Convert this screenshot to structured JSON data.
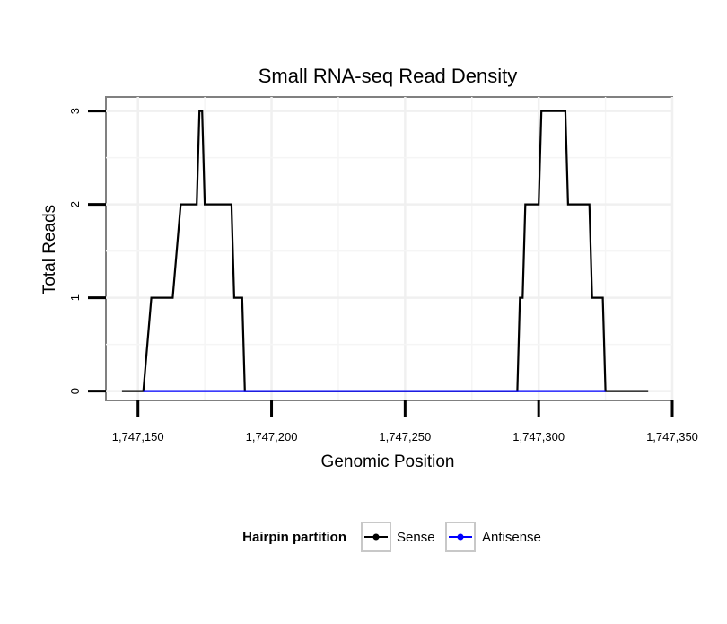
{
  "chart_data": {
    "type": "line",
    "title": "Small RNA-seq Read Density",
    "xlabel": "Genomic Position",
    "ylabel": "Total Reads",
    "xlim": [
      1747138,
      1747350
    ],
    "ylim": [
      -0.1,
      3.15
    ],
    "x_ticks": [
      1747150,
      1747200,
      1747250,
      1747300,
      1747350
    ],
    "x_tick_labels": [
      "1,747,150",
      "1,747,200",
      "1,747,250",
      "1,747,300",
      "1,747,350"
    ],
    "y_ticks": [
      0,
      1,
      2,
      3
    ],
    "y_tick_labels": [
      "0",
      "1",
      "2",
      "3"
    ],
    "grid": true,
    "legend": {
      "title": "Hairpin partition",
      "placement": "bottom",
      "entries": [
        "Sense",
        "Antisense"
      ]
    },
    "series": [
      {
        "name": "Sense",
        "color": "#000000",
        "points": [
          [
            1747144,
            0
          ],
          [
            1747152,
            0
          ],
          [
            1747155,
            1
          ],
          [
            1747163,
            1
          ],
          [
            1747166,
            2
          ],
          [
            1747172,
            2
          ],
          [
            1747173,
            3
          ],
          [
            1747174,
            3
          ],
          [
            1747175,
            2
          ],
          [
            1747185,
            2
          ],
          [
            1747186,
            1
          ],
          [
            1747189,
            1
          ],
          [
            1747190,
            0
          ],
          [
            1747292,
            0
          ],
          [
            1747293,
            1
          ],
          [
            1747294,
            1
          ],
          [
            1747295,
            2
          ],
          [
            1747300,
            2
          ],
          [
            1747301,
            3
          ],
          [
            1747310,
            3
          ],
          [
            1747311,
            2
          ],
          [
            1747319,
            2
          ],
          [
            1747320,
            1
          ],
          [
            1747324,
            1
          ],
          [
            1747325,
            0
          ],
          [
            1747341,
            0
          ]
        ]
      },
      {
        "name": "Antisense",
        "color": "#0000ff",
        "points": [
          [
            1747152,
            0
          ],
          [
            1747190,
            0
          ],
          [
            1747292,
            0
          ],
          [
            1747325,
            0
          ]
        ]
      }
    ]
  }
}
